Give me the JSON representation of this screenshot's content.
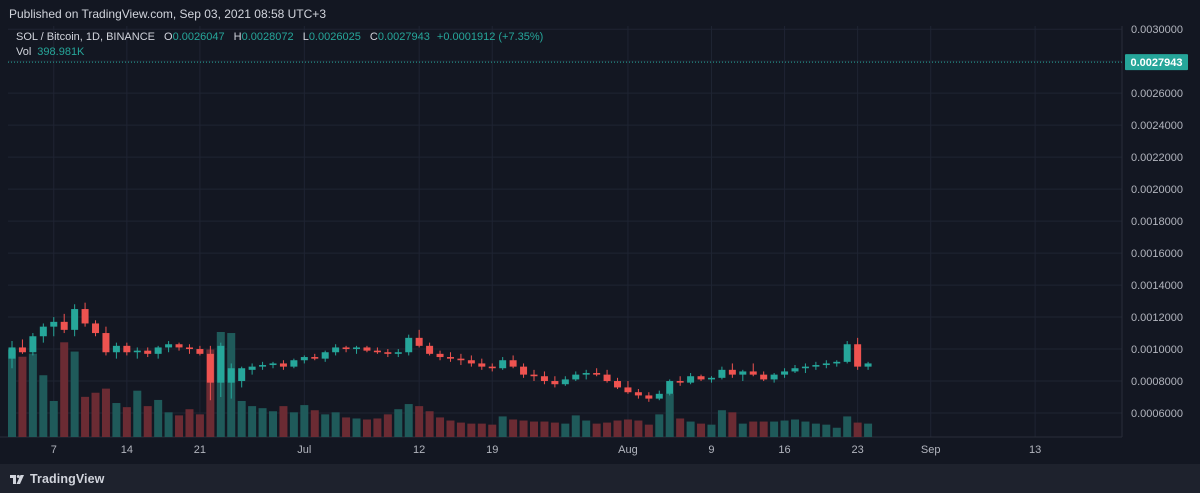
{
  "header": {
    "published": "Published on TradingView.com, Sep 03, 2021 08:58 UTC+3"
  },
  "legend": {
    "symbol": "SOL / Bitcoin, 1D, BINANCE",
    "open_label": "O",
    "open": "0.0026047",
    "high_label": "H",
    "high": "0.0028072",
    "low_label": "L",
    "low": "0.0026025",
    "close_label": "C",
    "close": "0.0027943",
    "change": "+0.0001912 (+7.35%)",
    "vol_label": "Vol",
    "vol": "398.981K"
  },
  "footer": {
    "brand": "TradingView"
  },
  "colors": {
    "background": "#131722",
    "up": "#26a69a",
    "down": "#ef5350",
    "vol_up": "#1f5a5a",
    "vol_down": "#6b2b33",
    "grid": "#1f2433",
    "text": "#b2b5be"
  },
  "chart_data": {
    "type": "candlestick",
    "symbol": "SOL / Bitcoin",
    "interval": "1D",
    "exchange": "BINANCE",
    "ylim": [
      0.00045,
      0.00302
    ],
    "y_ticks": [
      "0.0030000",
      "0.0028000",
      "0.0026000",
      "0.0024000",
      "0.0022000",
      "0.0020000",
      "0.0018000",
      "0.0016000",
      "0.0014000",
      "0.0012000",
      "0.0010000",
      "0.0008000",
      "0.0006000"
    ],
    "x_ticks": [
      {
        "index": 4,
        "label": "7"
      },
      {
        "index": 11,
        "label": "14"
      },
      {
        "index": 18,
        "label": "21"
      },
      {
        "index": 28,
        "label": "Jul"
      },
      {
        "index": 39,
        "label": "12"
      },
      {
        "index": 46,
        "label": "19"
      },
      {
        "index": 59,
        "label": "Aug"
      },
      {
        "index": 67,
        "label": "9"
      },
      {
        "index": 74,
        "label": "16"
      },
      {
        "index": 81,
        "label": "23"
      },
      {
        "index": 88,
        "label": "Sep"
      },
      {
        "index": 98,
        "label": "13"
      }
    ],
    "last_price": "0.0027943",
    "candles": [
      {
        "o": 0.00094,
        "h": 0.00105,
        "l": 0.00088,
        "c": 0.00101,
        "v": 8.5
      },
      {
        "o": 0.00101,
        "h": 0.00106,
        "l": 0.00097,
        "c": 0.00098,
        "v": 7.8
      },
      {
        "o": 0.00098,
        "h": 0.0011,
        "l": 0.00096,
        "c": 0.00108,
        "v": 8.1
      },
      {
        "o": 0.00108,
        "h": 0.00116,
        "l": 0.00104,
        "c": 0.00114,
        "v": 6.0
      },
      {
        "o": 0.00114,
        "h": 0.0012,
        "l": 0.00108,
        "c": 0.00117,
        "v": 3.5
      },
      {
        "o": 0.00117,
        "h": 0.00122,
        "l": 0.0011,
        "c": 0.00112,
        "v": 9.2
      },
      {
        "o": 0.00112,
        "h": 0.00128,
        "l": 0.00108,
        "c": 0.00125,
        "v": 8.3
      },
      {
        "o": 0.00125,
        "h": 0.00129,
        "l": 0.00114,
        "c": 0.00116,
        "v": 3.9
      },
      {
        "o": 0.00116,
        "h": 0.00118,
        "l": 0.00108,
        "c": 0.0011,
        "v": 4.3
      },
      {
        "o": 0.0011,
        "h": 0.00114,
        "l": 0.00096,
        "c": 0.00098,
        "v": 4.7
      },
      {
        "o": 0.00098,
        "h": 0.00104,
        "l": 0.00094,
        "c": 0.00102,
        "v": 3.3
      },
      {
        "o": 0.00102,
        "h": 0.00104,
        "l": 0.00096,
        "c": 0.00098,
        "v": 2.9
      },
      {
        "o": 0.00098,
        "h": 0.00101,
        "l": 0.00094,
        "c": 0.00099,
        "v": 4.5
      },
      {
        "o": 0.00099,
        "h": 0.00101,
        "l": 0.00095,
        "c": 0.00097,
        "v": 3.0
      },
      {
        "o": 0.00097,
        "h": 0.00102,
        "l": 0.00094,
        "c": 0.00101,
        "v": 3.6
      },
      {
        "o": 0.00101,
        "h": 0.00105,
        "l": 0.00098,
        "c": 0.00103,
        "v": 2.4
      },
      {
        "o": 0.00103,
        "h": 0.00104,
        "l": 0.00099,
        "c": 0.00101,
        "v": 2.1
      },
      {
        "o": 0.00101,
        "h": 0.00103,
        "l": 0.00097,
        "c": 0.001,
        "v": 2.7
      },
      {
        "o": 0.001,
        "h": 0.00102,
        "l": 0.00096,
        "c": 0.00097,
        "v": 2.2
      },
      {
        "o": 0.00097,
        "h": 0.00102,
        "l": 0.00068,
        "c": 0.00079,
        "v": 8.5
      },
      {
        "o": 0.00079,
        "h": 0.00104,
        "l": 0.0007,
        "c": 0.00102,
        "v": 10.2
      },
      {
        "o": 0.00079,
        "h": 0.00091,
        "l": 0.00069,
        "c": 0.00088,
        "v": 10.1
      },
      {
        "o": 0.0008,
        "h": 0.00089,
        "l": 0.00076,
        "c": 0.00088,
        "v": 3.5
      },
      {
        "o": 0.00087,
        "h": 0.00091,
        "l": 0.00084,
        "c": 0.00089,
        "v": 3.0
      },
      {
        "o": 0.00089,
        "h": 0.00092,
        "l": 0.00087,
        "c": 0.0009,
        "v": 2.8
      },
      {
        "o": 0.0009,
        "h": 0.00092,
        "l": 0.00088,
        "c": 0.00091,
        "v": 2.5
      },
      {
        "o": 0.00091,
        "h": 0.00093,
        "l": 0.00087,
        "c": 0.00089,
        "v": 3.0
      },
      {
        "o": 0.00089,
        "h": 0.00094,
        "l": 0.00088,
        "c": 0.00093,
        "v": 2.4
      },
      {
        "o": 0.00093,
        "h": 0.00096,
        "l": 0.00091,
        "c": 0.00095,
        "v": 3.1
      },
      {
        "o": 0.00095,
        "h": 0.00097,
        "l": 0.00093,
        "c": 0.00094,
        "v": 2.6
      },
      {
        "o": 0.00094,
        "h": 0.00099,
        "l": 0.00092,
        "c": 0.00098,
        "v": 2.2
      },
      {
        "o": 0.00098,
        "h": 0.00103,
        "l": 0.00096,
        "c": 0.00101,
        "v": 2.4
      },
      {
        "o": 0.00101,
        "h": 0.00102,
        "l": 0.00098,
        "c": 0.001,
        "v": 1.9
      },
      {
        "o": 0.001,
        "h": 0.00102,
        "l": 0.00097,
        "c": 0.00101,
        "v": 1.8
      },
      {
        "o": 0.00101,
        "h": 0.00102,
        "l": 0.00098,
        "c": 0.00099,
        "v": 1.7
      },
      {
        "o": 0.00099,
        "h": 0.00101,
        "l": 0.00097,
        "c": 0.00098,
        "v": 1.8
      },
      {
        "o": 0.00098,
        "h": 0.001,
        "l": 0.00095,
        "c": 0.00097,
        "v": 2.2
      },
      {
        "o": 0.00097,
        "h": 0.001,
        "l": 0.00095,
        "c": 0.00098,
        "v": 2.7
      },
      {
        "o": 0.00098,
        "h": 0.00109,
        "l": 0.00096,
        "c": 0.00107,
        "v": 3.2
      },
      {
        "o": 0.00107,
        "h": 0.00112,
        "l": 0.00101,
        "c": 0.00102,
        "v": 3.0
      },
      {
        "o": 0.00102,
        "h": 0.00104,
        "l": 0.00096,
        "c": 0.00097,
        "v": 2.5
      },
      {
        "o": 0.00097,
        "h": 0.00099,
        "l": 0.00093,
        "c": 0.00095,
        "v": 1.9
      },
      {
        "o": 0.00095,
        "h": 0.00098,
        "l": 0.00092,
        "c": 0.00094,
        "v": 1.6
      },
      {
        "o": 0.00094,
        "h": 0.00097,
        "l": 0.0009,
        "c": 0.00093,
        "v": 1.4
      },
      {
        "o": 0.00093,
        "h": 0.00096,
        "l": 0.00089,
        "c": 0.00091,
        "v": 1.3
      },
      {
        "o": 0.00091,
        "h": 0.00094,
        "l": 0.00087,
        "c": 0.00089,
        "v": 1.3
      },
      {
        "o": 0.00089,
        "h": 0.00091,
        "l": 0.00086,
        "c": 0.00088,
        "v": 1.2
      },
      {
        "o": 0.00088,
        "h": 0.00095,
        "l": 0.00087,
        "c": 0.00093,
        "v": 2.0
      },
      {
        "o": 0.00093,
        "h": 0.00096,
        "l": 0.00088,
        "c": 0.00089,
        "v": 1.7
      },
      {
        "o": 0.00089,
        "h": 0.00091,
        "l": 0.00082,
        "c": 0.00084,
        "v": 1.6
      },
      {
        "o": 0.00084,
        "h": 0.00087,
        "l": 0.0008,
        "c": 0.00083,
        "v": 1.5
      },
      {
        "o": 0.00083,
        "h": 0.00086,
        "l": 0.00078,
        "c": 0.0008,
        "v": 1.5
      },
      {
        "o": 0.0008,
        "h": 0.00083,
        "l": 0.00076,
        "c": 0.00078,
        "v": 1.4
      },
      {
        "o": 0.00078,
        "h": 0.00083,
        "l": 0.00077,
        "c": 0.00081,
        "v": 1.3
      },
      {
        "o": 0.00081,
        "h": 0.00086,
        "l": 0.0008,
        "c": 0.00084,
        "v": 2.1
      },
      {
        "o": 0.00084,
        "h": 0.00087,
        "l": 0.00081,
        "c": 0.00085,
        "v": 1.6
      },
      {
        "o": 0.00085,
        "h": 0.00088,
        "l": 0.00083,
        "c": 0.00084,
        "v": 1.3
      },
      {
        "o": 0.00084,
        "h": 0.00087,
        "l": 0.00079,
        "c": 0.0008,
        "v": 1.4
      },
      {
        "o": 0.0008,
        "h": 0.00082,
        "l": 0.00075,
        "c": 0.00076,
        "v": 1.6
      },
      {
        "o": 0.00076,
        "h": 0.0008,
        "l": 0.00072,
        "c": 0.00073,
        "v": 1.7
      },
      {
        "o": 0.00073,
        "h": 0.00075,
        "l": 0.00069,
        "c": 0.00071,
        "v": 1.6
      },
      {
        "o": 0.00071,
        "h": 0.00073,
        "l": 0.00067,
        "c": 0.00069,
        "v": 1.2
      },
      {
        "o": 0.00069,
        "h": 0.00074,
        "l": 0.00068,
        "c": 0.00072,
        "v": 2.2
      },
      {
        "o": 0.00072,
        "h": 0.00081,
        "l": 0.00071,
        "c": 0.0008,
        "v": 4.2
      },
      {
        "o": 0.0008,
        "h": 0.00083,
        "l": 0.00077,
        "c": 0.00079,
        "v": 1.8
      },
      {
        "o": 0.00079,
        "h": 0.00085,
        "l": 0.00078,
        "c": 0.00083,
        "v": 1.5
      },
      {
        "o": 0.00083,
        "h": 0.00084,
        "l": 0.0008,
        "c": 0.00081,
        "v": 1.3
      },
      {
        "o": 0.00081,
        "h": 0.00083,
        "l": 0.00079,
        "c": 0.00082,
        "v": 1.2
      },
      {
        "o": 0.00082,
        "h": 0.00089,
        "l": 0.00081,
        "c": 0.00087,
        "v": 2.6
      },
      {
        "o": 0.00087,
        "h": 0.00091,
        "l": 0.00082,
        "c": 0.00084,
        "v": 2.4
      },
      {
        "o": 0.00084,
        "h": 0.00087,
        "l": 0.0008,
        "c": 0.00086,
        "v": 1.3
      },
      {
        "o": 0.00086,
        "h": 0.00091,
        "l": 0.00083,
        "c": 0.00084,
        "v": 1.5
      },
      {
        "o": 0.00084,
        "h": 0.00086,
        "l": 0.0008,
        "c": 0.00081,
        "v": 1.5
      },
      {
        "o": 0.00081,
        "h": 0.00085,
        "l": 0.00079,
        "c": 0.00084,
        "v": 1.5
      },
      {
        "o": 0.00084,
        "h": 0.00088,
        "l": 0.00082,
        "c": 0.00086,
        "v": 1.6
      },
      {
        "o": 0.00086,
        "h": 0.0009,
        "l": 0.00085,
        "c": 0.00088,
        "v": 1.7
      },
      {
        "o": 0.00088,
        "h": 0.00091,
        "l": 0.00085,
        "c": 0.00089,
        "v": 1.5
      },
      {
        "o": 0.00089,
        "h": 0.00092,
        "l": 0.00087,
        "c": 0.0009,
        "v": 1.3
      },
      {
        "o": 0.0009,
        "h": 0.00093,
        "l": 0.00088,
        "c": 0.00091,
        "v": 1.2
      },
      {
        "o": 0.00091,
        "h": 0.00093,
        "l": 0.00089,
        "c": 0.00092,
        "v": 0.9
      },
      {
        "o": 0.00092,
        "h": 0.00105,
        "l": 0.00091,
        "c": 0.00103,
        "v": 2.0
      },
      {
        "o": 0.00103,
        "h": 0.00107,
        "l": 0.00087,
        "c": 0.00089,
        "v": 1.4
      },
      {
        "o": 0.00089,
        "h": 0.00092,
        "l": 0.00087,
        "c": 0.00091,
        "v": 1.3
      }
    ]
  }
}
